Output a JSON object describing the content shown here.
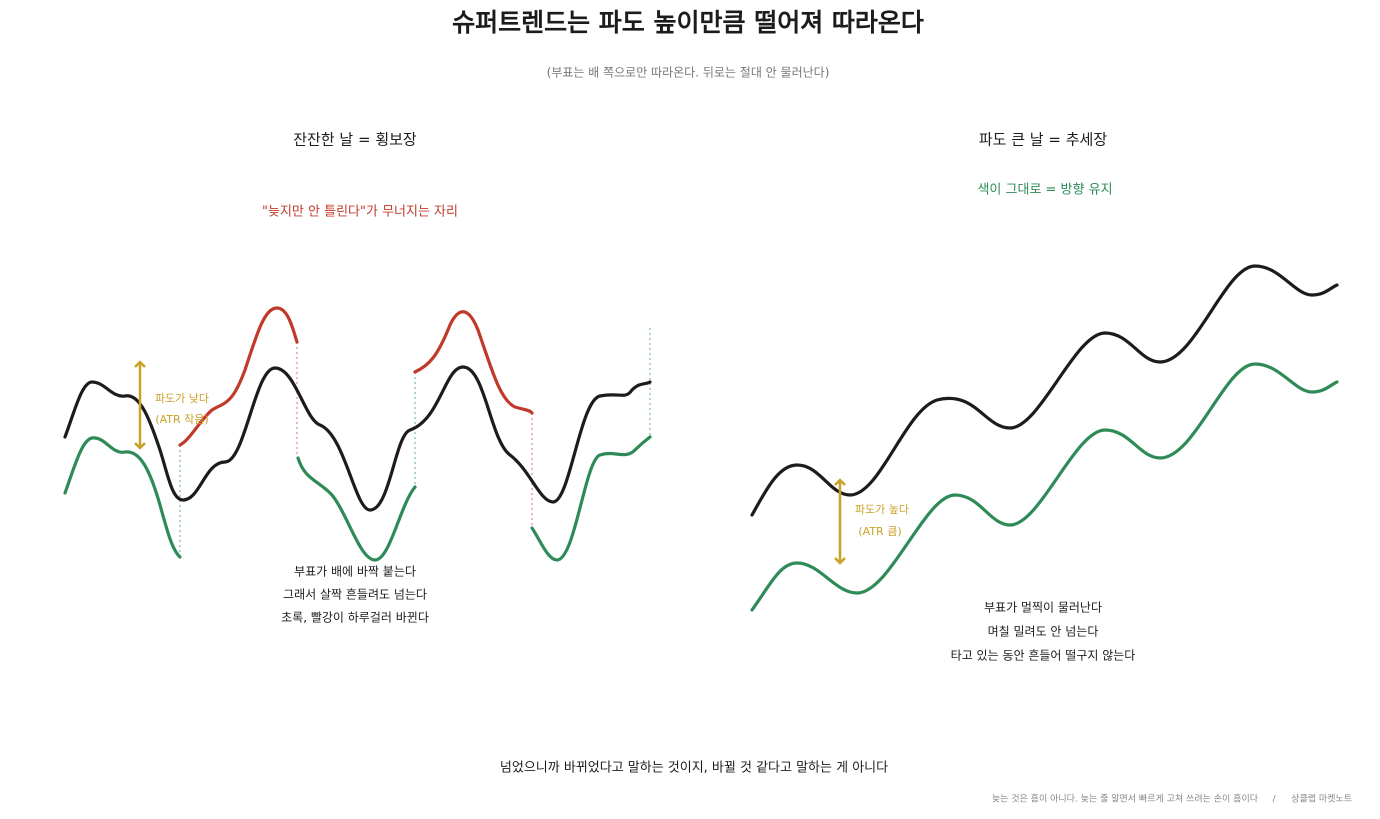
{
  "header": {
    "title": "슈퍼트렌드는 파도 높이만큼 떨어져 따라온다",
    "subtitle": "(부표는 배 쪽으로만 따라온다. 뒤로는 절대 안 물러난다)"
  },
  "panels": [
    {
      "title": "잔잔한 날 = 횡보장",
      "note": "\"늦지만 안 틀린다\"가 무너지는 자리",
      "atr_label": [
        "파도가 낮다",
        "(ATR 작음)"
      ],
      "caption": [
        "부표가 배에 바짝 붙는다",
        "그래서 살짝 흔들려도 넘는다",
        "초록, 빨강이 하루걸러 바뀐다"
      ]
    },
    {
      "title": "파도 큰 날 = 추세장",
      "note": "색이 그대로 = 방향 유지",
      "atr_label": [
        "파도가 높다",
        "(ATR 큼)"
      ],
      "caption": [
        "부표가 멀찍이 물러난다",
        "며칠 밀려도 안 넘는다",
        "타고 있는 동안 흔들어 떨구지 않는다"
      ]
    }
  ],
  "footer": {
    "message": "넘었으니까 바뀌었다고 말하는 것이지, 바뀔 것 같다고 말하는 게 아니다",
    "quote": "늦는 것은 흠이 아니다. 늦는 줄 알면서 빠르게 고쳐 쓰려는 손이 흠이다",
    "separator": "/",
    "source": "상클랩 마켓노트"
  }
}
